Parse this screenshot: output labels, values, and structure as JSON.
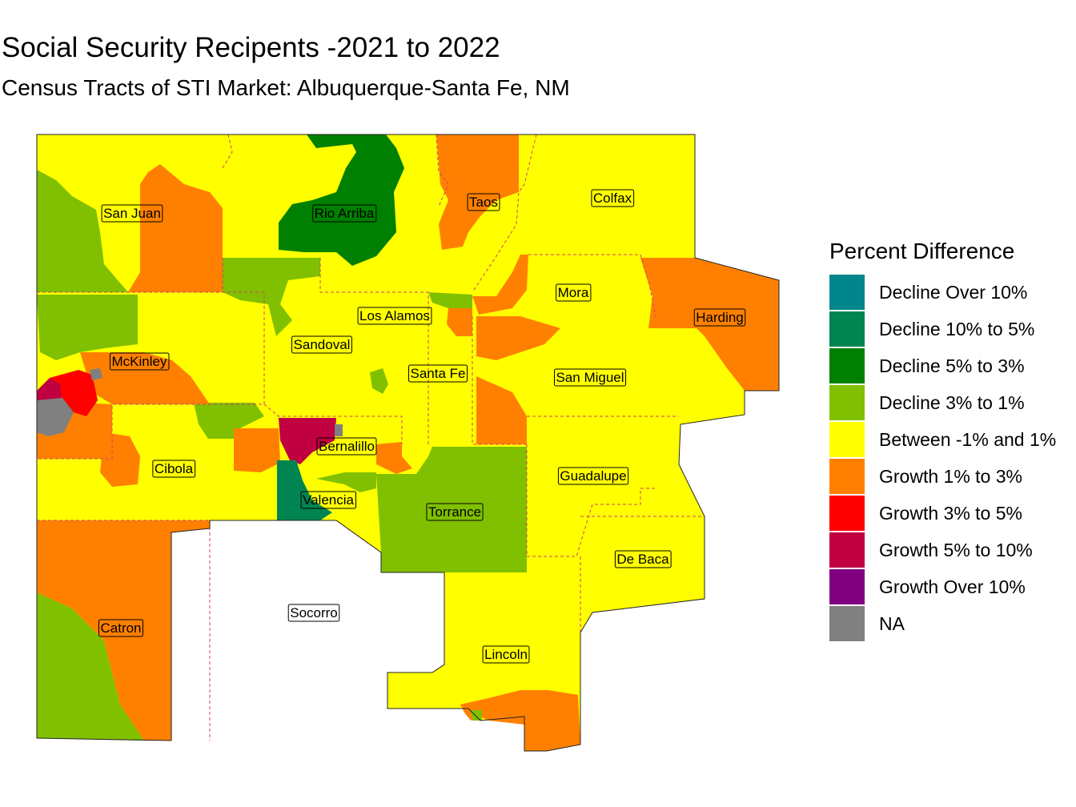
{
  "title": "Social Security Recipents -2021 to 2022",
  "subtitle": "Census Tracts of STI Market: Albuquerque-Santa Fe, NM",
  "legend": {
    "title": "Percent Difference",
    "items": [
      {
        "label": "Decline Over 10%",
        "color": "#00868b"
      },
      {
        "label": "Decline 10% to 5%",
        "color": "#008452"
      },
      {
        "label": "Decline 5% to 3%",
        "color": "#008000"
      },
      {
        "label": "Decline 3% to 1%",
        "color": "#80c000"
      },
      {
        "label": "Between -1% and 1%",
        "color": "#ffff00"
      },
      {
        "label": "Growth 1% to 3%",
        "color": "#ff8000"
      },
      {
        "label": "Growth 3% to 5%",
        "color": "#ff0000"
      },
      {
        "label": "Growth 5% to 10%",
        "color": "#c00040"
      },
      {
        "label": "Growth Over 10%",
        "color": "#800080"
      },
      {
        "label": "NA",
        "color": "#808080"
      }
    ]
  },
  "counties": [
    {
      "name": "San Juan"
    },
    {
      "name": "Rio Arriba"
    },
    {
      "name": "Taos"
    },
    {
      "name": "Colfax"
    },
    {
      "name": "Mora"
    },
    {
      "name": "Harding"
    },
    {
      "name": "Los Alamos"
    },
    {
      "name": "Sandoval"
    },
    {
      "name": "McKinley"
    },
    {
      "name": "Santa Fe"
    },
    {
      "name": "San Miguel"
    },
    {
      "name": "Bernalillo"
    },
    {
      "name": "Cibola"
    },
    {
      "name": "Guadalupe"
    },
    {
      "name": "Valencia"
    },
    {
      "name": "Torrance"
    },
    {
      "name": "De Baca"
    },
    {
      "name": "Socorro"
    },
    {
      "name": "Catron"
    },
    {
      "name": "Lincoln"
    }
  ]
}
